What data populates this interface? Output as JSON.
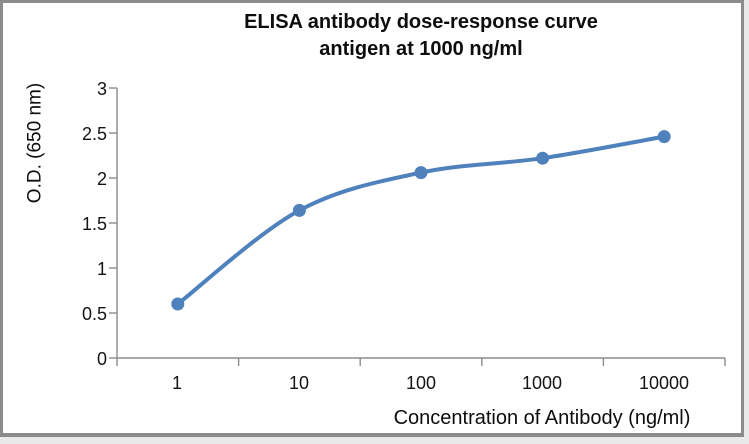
{
  "window": {
    "background_color": "#FFFFFF",
    "border_color": "#8C8C8C"
  },
  "chart_data": {
    "type": "line",
    "title": "ELISA antibody dose-response curve",
    "subtitle": "antigen at 1000 ng/ml",
    "xlabel": "Concentration of Antibody (ng/ml)",
    "ylabel": "O.D. (650 nm)",
    "x_scale": "logarithmic category axis",
    "categories": [
      "1",
      "10",
      "100",
      "1000",
      "10000"
    ],
    "series": [
      {
        "name": "O.D. 650 nm",
        "values": [
          0.6,
          1.64,
          2.06,
          2.22,
          2.46
        ],
        "color": "#4F81BD",
        "marker": "circle",
        "smooth": true
      }
    ],
    "ylim": [
      0,
      3
    ],
    "ytick_step": 0.5,
    "y_tick_labels": [
      "3",
      "2.5",
      "2",
      "1.5",
      "1",
      "0.5",
      "0"
    ],
    "grid": "off",
    "legend": "none",
    "axis_color": "#8C8C8C",
    "text_color": "#141414"
  }
}
